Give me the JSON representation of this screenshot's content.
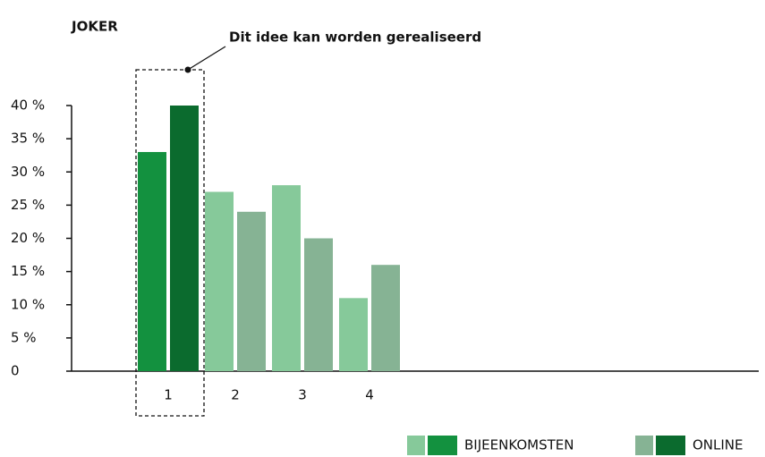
{
  "chart_data": {
    "type": "bar",
    "title": "JOKER",
    "categories": [
      "1",
      "2",
      "3",
      "4"
    ],
    "series": [
      {
        "name": "BIJEENKOMSTEN",
        "color": "#86c99a",
        "highlight_color": "#13913f",
        "values": [
          33,
          27,
          28,
          11
        ]
      },
      {
        "name": "ONLINE",
        "color": "#86b394",
        "highlight_color": "#0b6b2e",
        "values": [
          40,
          24,
          20,
          16
        ]
      }
    ],
    "highlight": {
      "index": 0,
      "annotation": "Dit idee kan worden gerealiseerd"
    },
    "ylim": [
      0,
      40
    ],
    "yticks": [
      0,
      {
        "value": 5,
        "label": "5 %"
      },
      {
        "value": 10,
        "label": "10 %"
      },
      {
        "value": 15,
        "label": "15 %"
      },
      {
        "value": 20,
        "label": "20 %"
      },
      {
        "value": 25,
        "label": "25 %"
      },
      {
        "value": 30,
        "label": "30 %"
      },
      {
        "value": 35,
        "label": "35 %"
      },
      {
        "value": 40,
        "label": "40 %"
      }
    ],
    "grid": false
  }
}
